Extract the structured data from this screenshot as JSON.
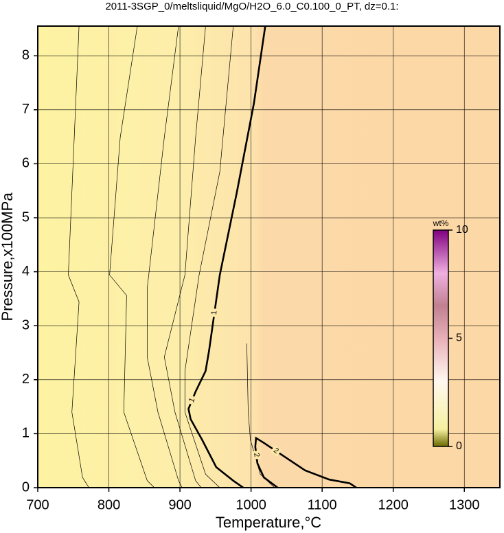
{
  "chart_data": {
    "type": "contour",
    "title": "2011-3SGP_0/meltsliquid/MgO/H2O_6.0_C0.100_0_PT, dz=0.1:",
    "x_label": "Temperature,°C",
    "y_label": "Pressure,x100MPa",
    "xlim": [
      700,
      1350
    ],
    "ylim": [
      0,
      8.55
    ],
    "xticks": [
      700,
      800,
      900,
      1000,
      1100,
      1200,
      1300
    ],
    "yticks": [
      0,
      1,
      2,
      3,
      4,
      5,
      6,
      7,
      8
    ],
    "grid": true,
    "line_color": "#000000",
    "contours": [
      {
        "level": 0.2,
        "x": [
          758,
          743,
          758,
          748,
          763,
          772
        ],
        "y": [
          8.55,
          3.94,
          3.44,
          1.4,
          0.19,
          0
        ]
      },
      {
        "level": 0.3,
        "x": [
          840,
          816,
          801,
          825,
          821,
          854,
          864
        ],
        "y": [
          8.55,
          6.49,
          3.94,
          3.56,
          1.4,
          0.13,
          0
        ]
      },
      {
        "level": 0.4,
        "x": [
          898,
          878,
          854,
          854,
          869,
          898,
          903
        ],
        "y": [
          8.55,
          6.49,
          3.69,
          2.42,
          1.4,
          0.13,
          0
        ]
      },
      {
        "level": 0.5,
        "x": [
          936,
          922,
          907,
          878,
          893,
          922,
          930
        ],
        "y": [
          8.55,
          6.49,
          3.94,
          2.42,
          1.4,
          0.13,
          0
        ]
      },
      {
        "level": 0.7,
        "x": [
          975,
          956,
          927,
          907,
          907,
          936,
          956
        ],
        "y": [
          8.55,
          5.85,
          3.94,
          2.16,
          1.4,
          0.25,
          0
        ]
      },
      {
        "level": 1,
        "x": [
          1020,
          1004,
          980,
          956,
          941,
          936,
          922,
          912,
          915,
          931,
          951,
          975,
          989
        ],
        "y": [
          8.55,
          7.12,
          5.47,
          3.94,
          2.54,
          2.16,
          1.78,
          1.46,
          1.27,
          0.89,
          0.38,
          0.13,
          0
        ]
      },
      {
        "level": 1.5,
        "x": [
          994,
          996,
          999,
          1013,
          1033
        ],
        "y": [
          2.67,
          1.4,
          0.89,
          0.25,
          0
        ]
      },
      {
        "level": 2,
        "x": [
          1037.5,
          1018,
          1009,
          1006,
          1007,
          1018,
          1052,
          1076,
          1110,
          1139,
          1148
        ],
        "y": [
          0,
          0.19,
          0.45,
          0.76,
          0.92,
          0.83,
          0.53,
          0.32,
          0.15,
          0.08,
          0
        ]
      }
    ],
    "colorbar": {
      "label": "wt%",
      "lim": [
        0,
        10
      ],
      "ticks": [
        0,
        5,
        10
      ]
    }
  }
}
